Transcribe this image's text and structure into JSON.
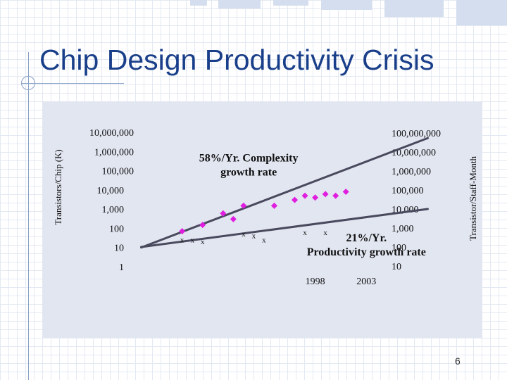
{
  "slide": {
    "title": "Chip Design Productivity Crisis",
    "page_number": "6"
  },
  "colors": {
    "title": "#1a3f8a",
    "panel": "#e2e6f1",
    "line": "#4a4a5e",
    "diamond": "#e01ee0",
    "text": "#111111"
  },
  "chart_data": {
    "type": "line",
    "title": "",
    "x": [
      1980,
      1985,
      1990,
      1995,
      2000,
      2005,
      2010
    ],
    "x_tick_labels": [
      {
        "x": 1998,
        "label": "1998"
      },
      {
        "x": 2003,
        "label": "2003"
      }
    ],
    "y_left": {
      "label": "Transistors/Chip (K)",
      "scale": "log",
      "range": [
        1,
        10000000
      ],
      "tick_values": [
        1,
        10,
        100,
        1000,
        10000,
        100000,
        1000000,
        10000000
      ],
      "tick_labels": [
        "1",
        "10",
        "100",
        "1,000",
        "10,000",
        "100,000",
        "1,000,000",
        "10,000,000"
      ]
    },
    "y_right": {
      "label": "Transistor/Staff-Month",
      "scale": "log",
      "range": [
        10,
        100000000
      ],
      "tick_values": [
        10,
        100,
        1000,
        10000,
        100000,
        1000000,
        10000000,
        100000000
      ],
      "tick_labels": [
        "10",
        "100",
        "1,000",
        "10,000",
        "100,000",
        "1,000,000",
        "10,000,000",
        "100,000,000"
      ]
    },
    "series": [
      {
        "name": "Complexity (Transistors/Chip)",
        "axis": "left",
        "line": {
          "x": [
            1981,
            2009
          ],
          "y": [
            10,
            5000000
          ]
        },
        "marker": "diamond",
        "points": [
          {
            "x": 1985,
            "y": 70
          },
          {
            "x": 1987,
            "y": 150
          },
          {
            "x": 1989,
            "y": 600
          },
          {
            "x": 1990,
            "y": 300
          },
          {
            "x": 1991,
            "y": 1500
          },
          {
            "x": 1994,
            "y": 1500
          },
          {
            "x": 1996,
            "y": 3000
          },
          {
            "x": 1997,
            "y": 5000
          },
          {
            "x": 1998,
            "y": 4000
          },
          {
            "x": 1999,
            "y": 6000
          },
          {
            "x": 2000,
            "y": 5000
          },
          {
            "x": 2001,
            "y": 8000
          }
        ]
      },
      {
        "name": "Productivity (Transistor/Staff-Month)",
        "axis": "right",
        "line": {
          "x": [
            1981,
            2009
          ],
          "y": [
            100,
            10000
          ]
        },
        "marker": "x",
        "points": [
          {
            "x": 1985,
            "y": 250
          },
          {
            "x": 1986,
            "y": 250
          },
          {
            "x": 1987,
            "y": 200
          },
          {
            "x": 1991,
            "y": 500
          },
          {
            "x": 1992,
            "y": 400
          },
          {
            "x": 1993,
            "y": 250
          },
          {
            "x": 1997,
            "y": 600
          },
          {
            "x": 1999,
            "y": 600
          }
        ]
      }
    ],
    "annotations": [
      {
        "text": "58%/Yr. Complexity",
        "text2": "growth rate",
        "x": 1991.5,
        "y": 300000,
        "axis": "left"
      },
      {
        "text": "21%/Yr.",
        "text2": "Productivity growth rate",
        "x": 2003,
        "y": 200,
        "axis": "right"
      }
    ]
  }
}
